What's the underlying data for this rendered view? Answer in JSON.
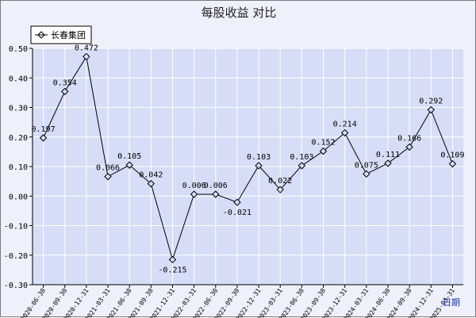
{
  "chart_data": {
    "type": "line",
    "title": "每股收益  对比",
    "xlabel": "日期",
    "ylabel": "",
    "ylim": [
      -0.3,
      0.5
    ],
    "yticks": [
      0.5,
      0.4,
      0.3,
      0.2,
      0.1,
      0.0,
      -0.1,
      -0.2,
      -0.3
    ],
    "ytick_labels": [
      "0.50",
      "0.40",
      "0.30",
      "0.20",
      "0.10",
      "0.00",
      "-0.10",
      "-0.20",
      "-0.30"
    ],
    "grid": true,
    "legend": "top-left",
    "categories": [
      "2020-06-30",
      "2020-09-30",
      "2020-12-31",
      "2021-03-31",
      "2021-06-30",
      "2021-09-30",
      "2021-12-31",
      "2022-03-31",
      "2022-06-30",
      "2022-09-30",
      "2022-12-31",
      "2023-03-31",
      "2023-06-30",
      "2023-09-30",
      "2023-12-31",
      "2024-03-31",
      "2024-06-30",
      "2024-09-30",
      "2024-12-31",
      "2025-03-31"
    ],
    "series": [
      {
        "name": "长春集团",
        "color": "#000000",
        "values": [
          0.197,
          0.354,
          0.472,
          0.066,
          0.105,
          0.042,
          -0.215,
          0.006,
          0.006,
          -0.021,
          0.103,
          0.022,
          0.103,
          0.152,
          0.214,
          0.075,
          0.111,
          0.166,
          0.292,
          0.109
        ],
        "labels": [
          "0.197",
          "0.354",
          "0.472",
          "0.066",
          "0.105",
          "0.042",
          "-0.215",
          "0.006",
          "0.006",
          "-0.021",
          "0.103",
          "0.022",
          "0.103",
          "0.152",
          "0.214",
          "0.075",
          "0.111",
          "0.166",
          "0.292",
          "0.109"
        ]
      }
    ]
  },
  "colors": {
    "background": "#eef0fb",
    "plot_background": "#d6ddf6",
    "grid": "#ffffff",
    "line": "#000000",
    "xaxis_label": "#1f33a8"
  }
}
